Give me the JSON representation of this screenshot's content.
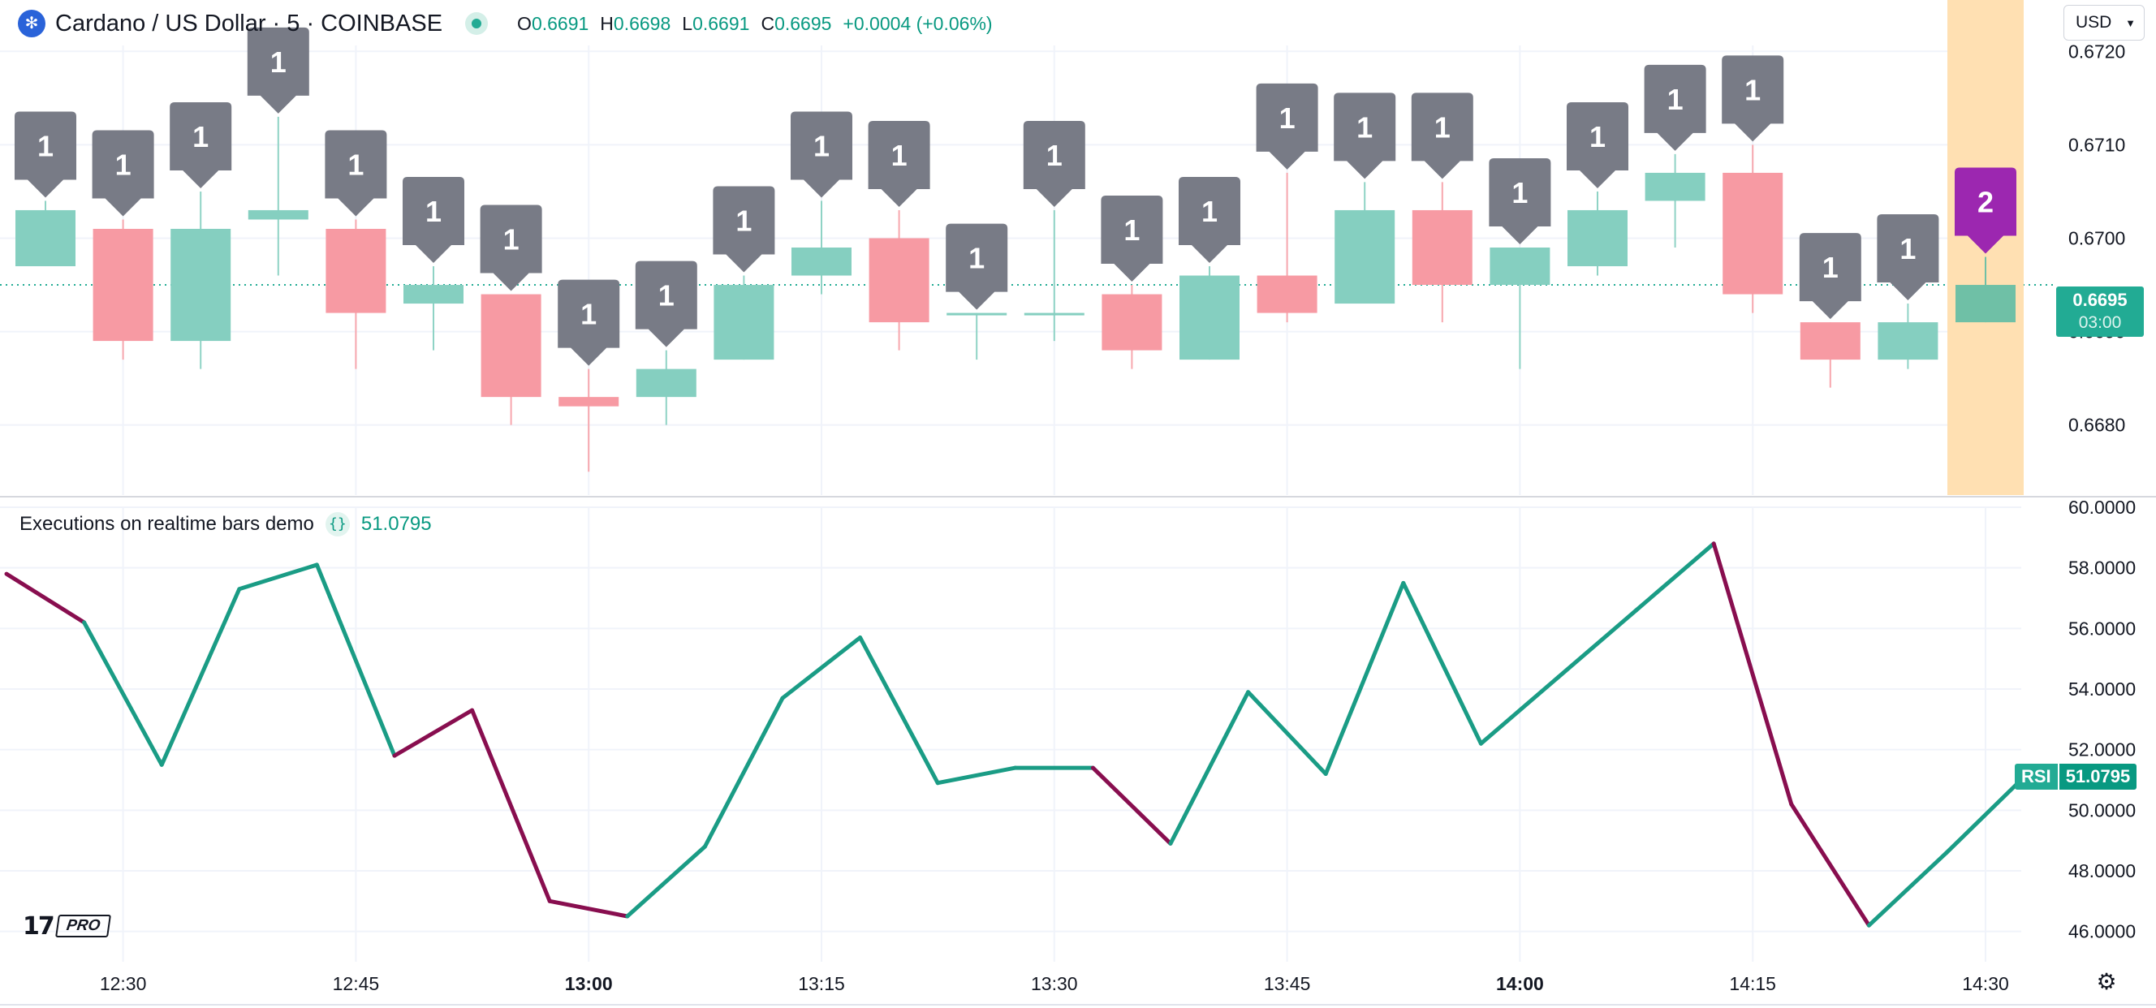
{
  "header": {
    "symbol": "Cardano / US Dollar · 5 · COINBASE",
    "ohlc": {
      "o_label": "O",
      "o_value": "0.6691",
      "h_label": "H",
      "h_value": "0.6698",
      "l_label": "L",
      "l_value": "0.6691",
      "c_label": "C",
      "c_value": "0.6695",
      "change": "+0.0004 (+0.06%)"
    },
    "icons": {
      "symbol": "cardano-coin-icon",
      "status": "live-dot-icon"
    }
  },
  "currency_button": {
    "label": "USD",
    "icon": "chevron-down-icon"
  },
  "indicator": {
    "name": "Executions on realtime bars demo",
    "icon": "braces-icon",
    "value": "51.0795"
  },
  "price_tag": {
    "price": "0.6695",
    "countdown": "03:00"
  },
  "rsi_tag": {
    "name": "RSI",
    "value": "51.0795"
  },
  "logo": {
    "text": "PRO",
    "icon": "tradingview-logo-icon"
  },
  "footer": {
    "settings_icon": "gear-icon"
  },
  "colors": {
    "up": "#22ab94",
    "down": "#f23645",
    "rsi_up": "#1a9c85",
    "rsi_down": "#880e4f",
    "label_gray": "#787b86",
    "label_realtime": "#9c27b0",
    "realtime_highlight": "#ffe0b2"
  },
  "chart_data": [
    {
      "type": "candlestick",
      "title": "",
      "y_tick_labels": [
        "0.6720",
        "0.6710",
        "0.6700",
        "0.6690",
        "0.6680"
      ],
      "ylim": [
        0.66725,
        0.67255
      ],
      "grid": true,
      "x_tick_labels": [
        "12:30",
        "12:45",
        "13:00",
        "13:15",
        "13:30",
        "13:45",
        "14:00",
        "14:15",
        "14:30"
      ],
      "bold_x_ticks": [
        "13:00",
        "14:00"
      ],
      "candles": [
        {
          "open": 0.6697,
          "high": 0.6704,
          "low": 0.6697,
          "close": 0.6703,
          "label": "1"
        },
        {
          "open": 0.6701,
          "high": 0.6702,
          "low": 0.6687,
          "close": 0.6689,
          "label": "1"
        },
        {
          "open": 0.6689,
          "high": 0.6705,
          "low": 0.6686,
          "close": 0.6701,
          "label": "1"
        },
        {
          "open": 0.6702,
          "high": 0.6713,
          "low": 0.6696,
          "close": 0.6703,
          "label": "1"
        },
        {
          "open": 0.6701,
          "high": 0.6702,
          "low": 0.6686,
          "close": 0.6692,
          "label": "1"
        },
        {
          "open": 0.6693,
          "high": 0.6697,
          "low": 0.6688,
          "close": 0.6695,
          "label": "1"
        },
        {
          "open": 0.6694,
          "high": 0.6694,
          "low": 0.668,
          "close": 0.6683,
          "label": "1"
        },
        {
          "open": 0.6683,
          "high": 0.6686,
          "low": 0.6675,
          "close": 0.6682,
          "label": "1"
        },
        {
          "open": 0.6683,
          "high": 0.6688,
          "low": 0.668,
          "close": 0.6686,
          "label": "1"
        },
        {
          "open": 0.6687,
          "high": 0.6696,
          "low": 0.6687,
          "close": 0.6695,
          "label": "1"
        },
        {
          "open": 0.6696,
          "high": 0.6704,
          "low": 0.6694,
          "close": 0.6699,
          "label": "1"
        },
        {
          "open": 0.67,
          "high": 0.6703,
          "low": 0.6688,
          "close": 0.6691,
          "label": "1"
        },
        {
          "open": 0.6692,
          "high": 0.6692,
          "low": 0.6687,
          "close": 0.6692,
          "label": "1"
        },
        {
          "open": 0.6692,
          "high": 0.6703,
          "low": 0.6689,
          "close": 0.6692,
          "label": "1"
        },
        {
          "open": 0.6694,
          "high": 0.6695,
          "low": 0.6686,
          "close": 0.6688,
          "label": "1"
        },
        {
          "open": 0.6687,
          "high": 0.6697,
          "low": 0.6687,
          "close": 0.6696,
          "label": "1"
        },
        {
          "open": 0.6696,
          "high": 0.6707,
          "low": 0.6691,
          "close": 0.6692,
          "label": "1"
        },
        {
          "open": 0.6693,
          "high": 0.6706,
          "low": 0.6693,
          "close": 0.6703,
          "label": "1"
        },
        {
          "open": 0.6703,
          "high": 0.6706,
          "low": 0.6691,
          "close": 0.6695,
          "label": "1"
        },
        {
          "open": 0.6695,
          "high": 0.6699,
          "low": 0.6686,
          "close": 0.6699,
          "label": "1"
        },
        {
          "open": 0.6697,
          "high": 0.6705,
          "low": 0.6696,
          "close": 0.6703,
          "label": "1"
        },
        {
          "open": 0.6704,
          "high": 0.6709,
          "low": 0.6699,
          "close": 0.6707,
          "label": "1"
        },
        {
          "open": 0.6707,
          "high": 0.671,
          "low": 0.6692,
          "close": 0.6694,
          "label": "1"
        },
        {
          "open": 0.6691,
          "high": 0.6691,
          "low": 0.6684,
          "close": 0.6687,
          "label": "1"
        },
        {
          "open": 0.6687,
          "high": 0.6693,
          "low": 0.6686,
          "close": 0.6691,
          "label": "1"
        },
        {
          "open": 0.6691,
          "high": 0.6698,
          "low": 0.6691,
          "close": 0.6695,
          "label": "2",
          "realtime": true
        }
      ],
      "last_price": 0.6695
    },
    {
      "type": "line",
      "title": "",
      "series": [
        {
          "name": "RSI",
          "values": [
            57.8,
            56.2,
            51.5,
            57.3,
            58.1,
            51.8,
            53.3,
            47.0,
            46.5,
            48.8,
            53.7,
            55.7,
            50.9,
            51.4,
            51.4,
            48.9,
            53.9,
            51.2,
            57.5,
            52.2,
            54.4,
            56.6,
            58.8,
            50.2,
            46.2,
            48.6,
            51.1
          ],
          "direction": [
            "down",
            "up",
            "up",
            "up",
            "up",
            "down",
            "down",
            "down",
            "up",
            "up",
            "up",
            "up",
            "up",
            "up",
            "down",
            "up",
            "up",
            "up",
            "up",
            "up",
            "up",
            "up",
            "down",
            "down",
            "up",
            "up"
          ]
        }
      ],
      "y_tick_labels": [
        "60.0000",
        "58.0000",
        "56.0000",
        "54.0000",
        "52.0000",
        "50.0000",
        "48.0000",
        "46.0000"
      ],
      "ylim": [
        45.0,
        60.0
      ],
      "grid": true
    }
  ]
}
